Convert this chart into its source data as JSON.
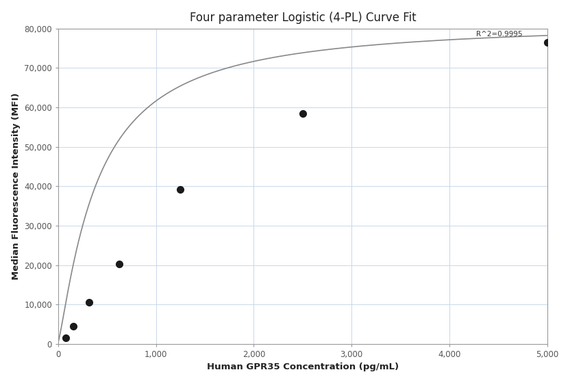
{
  "title": "Four parameter Logistic (4-PL) Curve Fit",
  "xlabel": "Human GPR35 Concentration (pg/mL)",
  "ylabel": "Median Fluorescence Intensity (MFI)",
  "data_x": [
    78.125,
    156.25,
    312.5,
    625,
    1250,
    2500,
    5000
  ],
  "data_y": [
    1500,
    4500,
    10500,
    20200,
    39200,
    58500,
    76500
  ],
  "xlim": [
    0,
    5000
  ],
  "ylim": [
    0,
    80000
  ],
  "xticks": [
    0,
    1000,
    2000,
    3000,
    4000,
    5000
  ],
  "xtick_labels": [
    "0",
    "1,000",
    "2,000",
    "3,000",
    "4,000",
    "5,000"
  ],
  "yticks": [
    0,
    10000,
    20000,
    30000,
    40000,
    50000,
    60000,
    70000,
    80000
  ],
  "ytick_labels": [
    "0",
    "10,000",
    "20,000",
    "30,000",
    "40,000",
    "50,000",
    "60,000",
    "70,000",
    "80,000"
  ],
  "r2_text": "R^2=0.9995",
  "r2_x": 4750,
  "r2_y": 79500,
  "marker_color": "#1a1a1a",
  "marker_size": 7,
  "line_color": "#888888",
  "line_width": 1.2,
  "grid_color": "#c8d8e8",
  "bg_color": "#ffffff",
  "title_fontsize": 12,
  "label_fontsize": 9.5,
  "tick_fontsize": 8.5,
  "annotation_fontsize": 7.5,
  "spine_color": "#999999",
  "tick_color": "#555555"
}
